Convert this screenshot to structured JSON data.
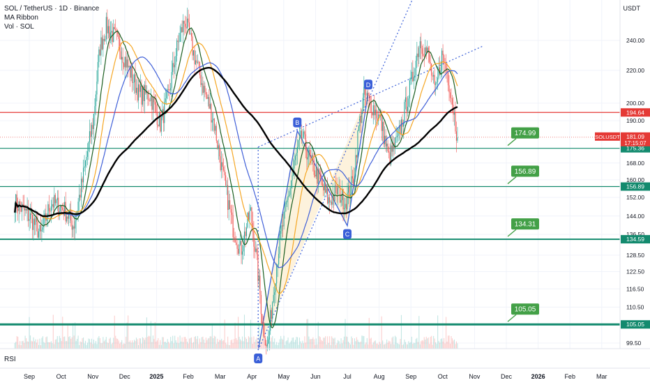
{
  "header": {
    "symbol_line": "SOL / TetherUS · 1D · Binance",
    "indicator_1": "MA Ribbon",
    "indicator_2": "Vol · SOL",
    "currency": "USDT",
    "sub_pane_label": "RSI"
  },
  "colors": {
    "up": "#26a69a",
    "down": "#ef5350",
    "ma_fast": "#1b5e20",
    "ma_mid": "#f5a623",
    "ma_slow": "#3f5fd8",
    "ma_long": "#000000",
    "resistance": "#e53935",
    "support": "#138a6e",
    "label_green": "#43a047",
    "pattern_blue": "#3a5fd8",
    "pattern_fill": "#fdf2dc"
  },
  "chart_data": {
    "type": "candlestick",
    "title": "SOL / TetherUS · 1D · Binance",
    "ylim": [
      96,
      262
    ],
    "y_ticks": [
      99.5,
      105.05,
      110.5,
      116.5,
      122.5,
      128.5,
      136.5,
      144.0,
      152.0,
      160.0,
      168.0,
      190.0,
      200.0,
      220.0,
      240.0
    ],
    "x_ticks": [
      "Sep",
      "Oct",
      "Nov",
      "Dec",
      "2025",
      "Feb",
      "Mar",
      "Apr",
      "May",
      "Jun",
      "Jul",
      "Aug",
      "Sep",
      "Oct",
      "Nov",
      "Dec",
      "2026",
      "Feb",
      "Mar"
    ],
    "last_price": {
      "symbol": "SOLUSDT",
      "value": "181.09",
      "countdown": "17:15:07"
    },
    "axis_badges": [
      {
        "value": "194.64",
        "kind": "resistance"
      },
      {
        "value": "175.36",
        "kind": "support"
      },
      {
        "value": "156.89",
        "kind": "support"
      },
      {
        "value": "134.59",
        "kind": "support"
      },
      {
        "value": "105.05",
        "kind": "support"
      }
    ],
    "levels": [
      {
        "price": 194.64,
        "kind": "resistance",
        "label": ""
      },
      {
        "price": 175.36,
        "kind": "support",
        "label": "174.99"
      },
      {
        "price": 156.89,
        "kind": "support",
        "label": "156.89"
      },
      {
        "price": 134.59,
        "kind": "support",
        "label": "134.31"
      },
      {
        "price": 105.05,
        "kind": "support",
        "label": "105.05"
      }
    ],
    "pattern_points": [
      {
        "label": "A",
        "date": "Apr 7",
        "price": 97.5
      },
      {
        "label": "B",
        "date": "May 14",
        "price": 184.5
      },
      {
        "label": "C",
        "date": "Jul 1",
        "price": 140.0
      },
      {
        "label": "D",
        "date": "Jul 21",
        "price": 206.0
      }
    ],
    "close_series": [
      {
        "date": "Aug 2024",
        "close": 150
      },
      {
        "date": "Sep 2024",
        "close": 134
      },
      {
        "date": "Oct 2024",
        "close": 150
      },
      {
        "date": "Nov 2024",
        "close": 245
      },
      {
        "date": "Dec 2024",
        "close": 215
      },
      {
        "date": "Jan 2025",
        "close": 230
      },
      {
        "date": "Feb 2025",
        "close": 170
      },
      {
        "date": "Mar 2025",
        "close": 128
      },
      {
        "date": "Apr 2025",
        "close": 142
      },
      {
        "date": "May 2025",
        "close": 168
      },
      {
        "date": "Jun 2025",
        "close": 148
      },
      {
        "date": "Jul 2025",
        "close": 185
      },
      {
        "date": "Aug 2025",
        "close": 202
      },
      {
        "date": "Sep 2025",
        "close": 210
      },
      {
        "date": "Oct 2025",
        "close": 181.09
      }
    ]
  }
}
